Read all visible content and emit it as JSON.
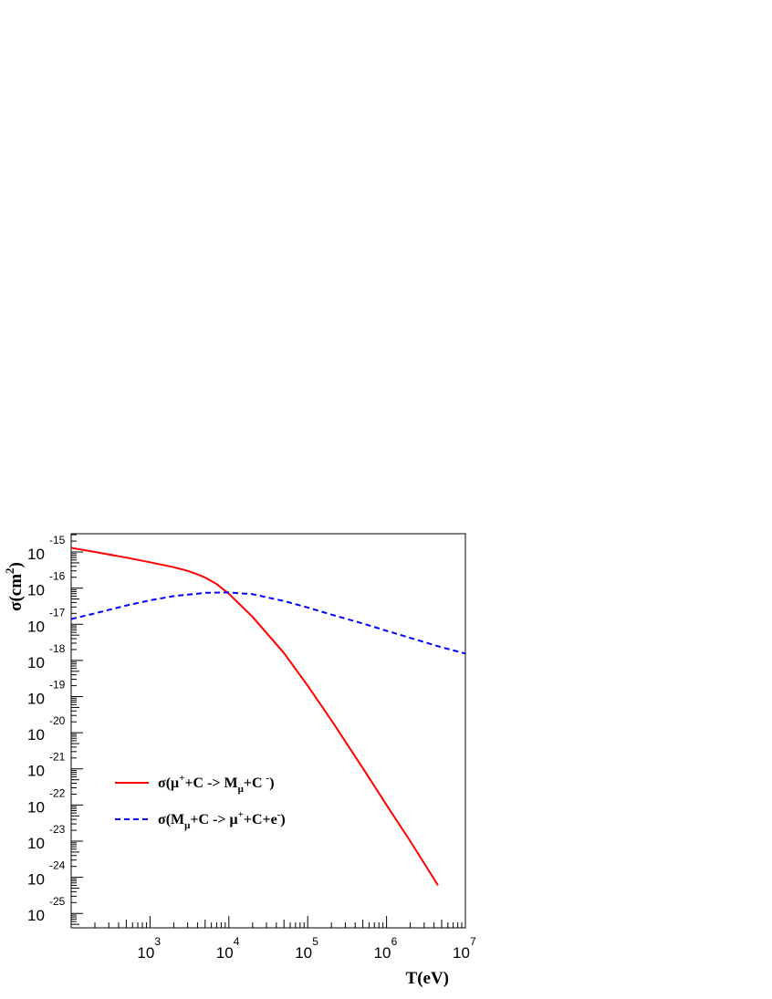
{
  "chart_data": {
    "type": "line",
    "xlabel": "T(eV)",
    "ylabel": "σ(cm²)",
    "ylabel_parts": {
      "base": "σ(cm",
      "sup": "2",
      "close": ")"
    },
    "x_scale": "log",
    "y_scale": "log",
    "xlim": [
      100,
      10000000
    ],
    "ylim": [
      4e-26,
      3.2e-15
    ],
    "grid": false,
    "legend_position": "lower-left",
    "x_ticks": [
      {
        "value": 1000,
        "base": "10",
        "exp": "3"
      },
      {
        "value": 10000,
        "base": "10",
        "exp": "4"
      },
      {
        "value": 100000,
        "base": "10",
        "exp": "5"
      },
      {
        "value": 1000000,
        "base": "10",
        "exp": "6"
      },
      {
        "value": 10000000,
        "base": "10",
        "exp": "7"
      }
    ],
    "y_ticks": [
      {
        "value": 1e-15,
        "base": "10",
        "exp": "-15"
      },
      {
        "value": 1e-16,
        "base": "10",
        "exp": "-16"
      },
      {
        "value": 1e-17,
        "base": "10",
        "exp": "-17"
      },
      {
        "value": 1e-18,
        "base": "10",
        "exp": "-18"
      },
      {
        "value": 1e-19,
        "base": "10",
        "exp": "-19"
      },
      {
        "value": 1e-20,
        "base": "10",
        "exp": "-20"
      },
      {
        "value": 1e-21,
        "base": "10",
        "exp": "-21"
      },
      {
        "value": 1e-22,
        "base": "10",
        "exp": "-22"
      },
      {
        "value": 1e-23,
        "base": "10",
        "exp": "-23"
      },
      {
        "value": 1e-24,
        "base": "10",
        "exp": "-24"
      },
      {
        "value": 1e-25,
        "base": "10",
        "exp": "-25"
      }
    ],
    "series": [
      {
        "name": "σ(μ⁺+C -> M_μ+C⁻)",
        "legend_parts": [
          {
            "t": "σ(μ",
            "s": "n"
          },
          {
            "t": "+",
            "s": "sup"
          },
          {
            "t": "+C -> M",
            "s": "n"
          },
          {
            "t": "μ",
            "s": "sub"
          },
          {
            "t": "+C ",
            "s": "n"
          },
          {
            "t": "-",
            "s": "sup"
          },
          {
            "t": ")",
            "s": "n"
          }
        ],
        "color": "#ff0000",
        "dash": "solid",
        "x": [
          100,
          200,
          500,
          1000,
          2000,
          3000,
          4000,
          5000,
          7000,
          10000,
          20000,
          50000,
          100000,
          200000,
          500000,
          1000000,
          2000000,
          4500000
        ],
        "y": [
          1.3e-15,
          1e-15,
          7e-16,
          5.2e-16,
          3.8e-16,
          3e-16,
          2.4e-16,
          1.95e-16,
          1.3e-16,
          7e-17,
          1.6e-17,
          1.6e-18,
          2e-19,
          2.2e-20,
          1.05e-21,
          1e-22,
          1e-23,
          6e-25
        ]
      },
      {
        "name": "σ(M_μ+C -> μ⁺+C+e⁻)",
        "legend_parts": [
          {
            "t": "σ(M",
            "s": "n"
          },
          {
            "t": "μ",
            "s": "sub"
          },
          {
            "t": "+C -> μ",
            "s": "n"
          },
          {
            "t": "+",
            "s": "sup"
          },
          {
            "t": "+C+e",
            "s": "n"
          },
          {
            "t": "-",
            "s": "sup"
          },
          {
            "t": ")",
            "s": "n"
          }
        ],
        "color": "#0000ff",
        "dash": "dashed",
        "x": [
          100,
          200,
          500,
          1000,
          2000,
          5000,
          10000,
          20000,
          50000,
          100000,
          200000,
          500000,
          1000000,
          2000000,
          5000000,
          10000000
        ],
        "y": [
          1.4e-17,
          2e-17,
          3.3e-17,
          4.6e-17,
          6e-17,
          7.4e-17,
          7.6e-17,
          6.8e-17,
          4.4e-17,
          2.9e-17,
          1.85e-17,
          1.05e-17,
          6.6e-18,
          4.2e-18,
          2.3e-18,
          1.55e-18
        ]
      }
    ]
  }
}
